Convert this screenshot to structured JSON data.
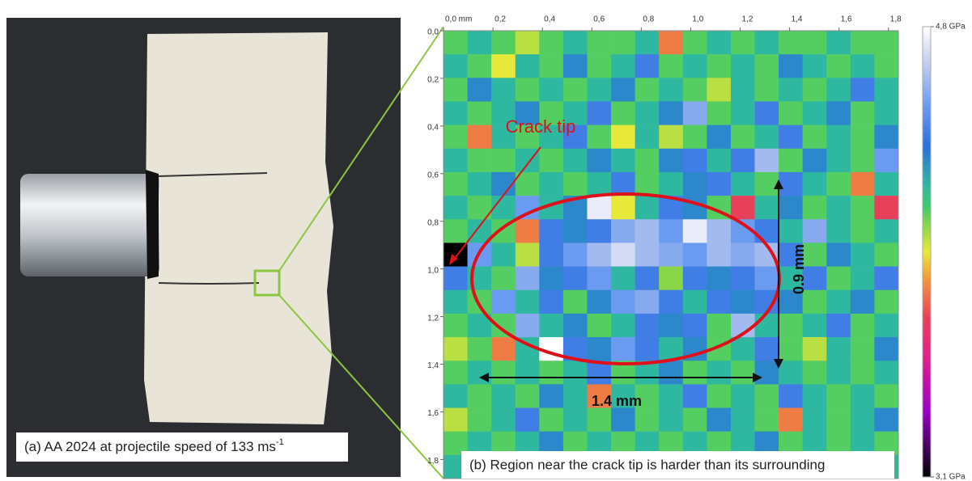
{
  "photo": {
    "caption": "(a) AA 2024 at projectile speed of 133 ms",
    "caption_superscript": "-1"
  },
  "chart_data": {
    "type": "heatmap",
    "caption": "(b) Region  near the crack tip is harder than its surrounding",
    "annotations": {
      "crack_tip": "Crack tip",
      "width": "1.4 mm",
      "height": "0.9 mm"
    },
    "xlim": [
      0,
      1.84
    ],
    "ylim": [
      0,
      1.88
    ],
    "xticks": [
      {
        "value": 0,
        "label": "0,0 mm"
      },
      {
        "value": 0.2,
        "label": "0,2"
      },
      {
        "value": 0.4,
        "label": "0,4"
      },
      {
        "value": 0.6,
        "label": "0,6"
      },
      {
        "value": 0.8,
        "label": "0,8"
      },
      {
        "value": 1.0,
        "label": "1,0"
      },
      {
        "value": 1.2,
        "label": "1,2"
      },
      {
        "value": 1.4,
        "label": "1,4"
      },
      {
        "value": 1.6,
        "label": "1,6"
      },
      {
        "value": 1.8,
        "label": "1,8"
      }
    ],
    "yticks": [
      {
        "value": 0,
        "label": "0,0"
      },
      {
        "value": 0.2,
        "label": "0,2"
      },
      {
        "value": 0.4,
        "label": "0,4"
      },
      {
        "value": 0.6,
        "label": "0,6"
      },
      {
        "value": 0.8,
        "label": "0,8"
      },
      {
        "value": 1.0,
        "label": "1,0"
      },
      {
        "value": 1.2,
        "label": "1,2"
      },
      {
        "value": 1.4,
        "label": "1,4"
      },
      {
        "value": 1.6,
        "label": "1,6"
      },
      {
        "value": 1.8,
        "label": "1,8"
      }
    ],
    "clim": [
      3.1,
      4.8
    ],
    "cticks": [
      {
        "value": 4.8,
        "label": "4,8 GPa"
      },
      {
        "value": 3.1,
        "label": "3,1 GPa"
      }
    ],
    "colorscale": [
      [
        3.1,
        "#000000"
      ],
      [
        3.35,
        "#9b00c8"
      ],
      [
        3.55,
        "#e0208c"
      ],
      [
        3.7,
        "#e8405a"
      ],
      [
        3.85,
        "#f29a3a"
      ],
      [
        3.95,
        "#e8e83a"
      ],
      [
        4.05,
        "#8ad64a"
      ],
      [
        4.12,
        "#3ec96a"
      ],
      [
        4.2,
        "#2fb8a0"
      ],
      [
        4.35,
        "#2a6fe0"
      ],
      [
        4.5,
        "#6b9bf0"
      ],
      [
        4.65,
        "#bfc9ee"
      ],
      [
        4.8,
        "#ffffff"
      ]
    ],
    "z": [
      [
        4.1,
        4.2,
        4.1,
        4.0,
        4.1,
        4.2,
        4.1,
        4.1,
        4.2,
        3.8,
        4.1,
        4.2,
        4.1,
        4.2,
        4.1,
        4.1,
        4.2,
        4.1,
        4.1
      ],
      [
        4.2,
        4.1,
        3.95,
        4.2,
        4.1,
        4.3,
        4.1,
        4.2,
        4.4,
        4.1,
        4.2,
        4.1,
        4.2,
        4.1,
        4.3,
        4.2,
        4.1,
        4.2,
        4.1
      ],
      [
        4.1,
        4.3,
        4.2,
        4.1,
        4.2,
        4.1,
        4.2,
        4.3,
        4.1,
        4.2,
        4.1,
        4.0,
        4.2,
        4.1,
        4.2,
        4.1,
        4.2,
        4.4,
        4.2
      ],
      [
        4.2,
        4.1,
        4.2,
        4.3,
        4.1,
        4.2,
        4.4,
        4.1,
        4.2,
        4.3,
        4.55,
        4.1,
        4.2,
        4.4,
        4.1,
        4.2,
        4.3,
        4.1,
        4.2
      ],
      [
        4.1,
        3.8,
        4.2,
        4.1,
        4.2,
        4.4,
        4.1,
        3.95,
        4.2,
        4.0,
        4.1,
        4.3,
        4.1,
        4.2,
        4.4,
        4.1,
        4.2,
        4.1,
        4.3
      ],
      [
        4.2,
        4.1,
        4.1,
        4.2,
        4.1,
        4.2,
        4.3,
        4.2,
        4.1,
        4.3,
        4.4,
        4.2,
        4.4,
        4.6,
        4.1,
        4.3,
        4.2,
        4.1,
        4.5
      ],
      [
        4.1,
        4.2,
        4.3,
        4.1,
        4.2,
        4.1,
        4.2,
        4.4,
        4.1,
        4.2,
        4.3,
        4.4,
        4.2,
        4.1,
        4.4,
        4.2,
        4.1,
        3.8,
        4.2
      ],
      [
        4.2,
        4.1,
        4.2,
        4.5,
        4.2,
        4.3,
        4.75,
        3.95,
        4.2,
        4.4,
        4.3,
        4.1,
        3.7,
        4.2,
        4.3,
        4.1,
        4.2,
        4.1,
        3.7
      ],
      [
        4.1,
        4.2,
        4.1,
        3.8,
        4.4,
        4.3,
        4.4,
        4.55,
        4.6,
        4.5,
        4.75,
        4.6,
        4.5,
        4.4,
        4.2,
        4.55,
        4.2,
        4.1,
        4.2
      ],
      [
        3.1,
        4.5,
        4.2,
        4.0,
        4.4,
        4.5,
        4.6,
        4.7,
        4.6,
        4.55,
        4.5,
        4.6,
        4.55,
        4.6,
        4.4,
        4.1,
        4.3,
        4.2,
        4.1
      ],
      [
        4.4,
        4.2,
        4.1,
        4.55,
        4.3,
        4.4,
        4.5,
        4.2,
        4.4,
        4.05,
        4.4,
        4.3,
        4.4,
        4.5,
        4.2,
        4.4,
        4.1,
        4.2,
        4.4
      ],
      [
        4.2,
        4.1,
        4.5,
        4.2,
        4.4,
        4.1,
        4.3,
        4.5,
        4.55,
        4.4,
        4.2,
        4.4,
        4.3,
        4.4,
        4.3,
        4.1,
        4.2,
        4.3,
        4.1
      ],
      [
        4.1,
        4.2,
        4.1,
        4.55,
        4.2,
        4.3,
        4.1,
        4.2,
        4.4,
        4.3,
        4.4,
        4.1,
        4.6,
        4.2,
        4.1,
        4.2,
        4.4,
        4.1,
        4.2
      ],
      [
        4.0,
        4.1,
        3.8,
        4.2,
        4.8,
        4.4,
        4.3,
        4.5,
        4.4,
        4.2,
        4.3,
        4.1,
        4.2,
        4.4,
        4.1,
        4.0,
        4.2,
        4.1,
        4.3
      ],
      [
        4.1,
        4.2,
        4.1,
        4.2,
        4.1,
        4.2,
        4.4,
        4.1,
        4.2,
        4.3,
        4.1,
        4.2,
        4.1,
        4.3,
        4.2,
        4.1,
        4.2,
        4.1,
        4.2
      ],
      [
        4.2,
        4.1,
        4.2,
        4.1,
        4.3,
        4.2,
        3.8,
        4.2,
        4.1,
        4.2,
        4.4,
        4.1,
        4.2,
        4.1,
        4.4,
        4.2,
        4.1,
        4.2,
        4.1
      ],
      [
        4.0,
        4.1,
        4.2,
        4.4,
        4.1,
        4.2,
        4.1,
        4.3,
        4.1,
        4.2,
        4.1,
        4.3,
        4.2,
        4.1,
        3.8,
        4.2,
        4.1,
        4.2,
        4.3
      ],
      [
        4.1,
        4.2,
        4.1,
        4.2,
        4.3,
        4.1,
        4.2,
        4.1,
        4.2,
        4.1,
        4.2,
        4.1,
        4.2,
        4.3,
        4.1,
        4.2,
        4.1,
        4.2,
        4.1
      ],
      [
        4.2,
        4.1,
        4.2,
        4.1,
        4.2,
        4.2,
        4.1,
        4.2,
        4.1,
        4.2,
        4.1,
        4.2,
        4.1,
        4.2,
        4.1,
        4.2,
        4.2,
        4.1,
        4.2
      ]
    ]
  }
}
